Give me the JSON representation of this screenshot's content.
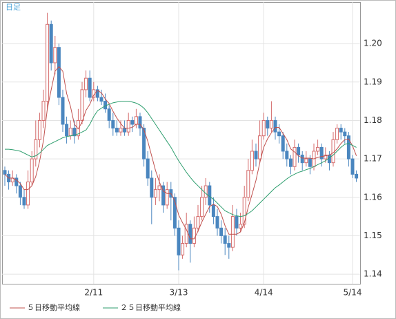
{
  "chart_data": {
    "type": "candlestick",
    "label": "日足",
    "categories": [
      null,
      null,
      null,
      null,
      null,
      null,
      null,
      null,
      null,
      null,
      null,
      null,
      null,
      null,
      null,
      null,
      null,
      null,
      null,
      null,
      null,
      null,
      null,
      "2/11",
      null,
      null,
      null,
      null,
      null,
      null,
      null,
      null,
      null,
      null,
      null,
      null,
      null,
      null,
      null,
      null,
      null,
      null,
      null,
      null,
      null,
      "3/13",
      null,
      null,
      null,
      null,
      null,
      null,
      null,
      null,
      null,
      null,
      null,
      null,
      null,
      null,
      null,
      null,
      null,
      null,
      null,
      null,
      null,
      "4/14",
      null,
      null,
      null,
      null,
      null,
      null,
      null,
      null,
      null,
      null,
      null,
      null,
      null,
      null,
      null,
      null,
      null,
      null,
      null,
      null,
      null,
      null,
      "5/14",
      null
    ],
    "candles": [
      [
        1.167,
        1.168,
        1.163,
        1.166
      ],
      [
        1.166,
        1.167,
        1.162,
        1.164
      ],
      [
        1.164,
        1.167,
        1.163,
        1.165
      ],
      [
        1.165,
        1.166,
        1.161,
        1.163
      ],
      [
        1.163,
        1.164,
        1.158,
        1.16
      ],
      [
        1.16,
        1.162,
        1.157,
        1.158
      ],
      [
        1.158,
        1.167,
        1.157,
        1.164
      ],
      [
        1.164,
        1.172,
        1.163,
        1.17
      ],
      [
        1.17,
        1.18,
        1.168,
        1.175
      ],
      [
        1.175,
        1.182,
        1.173,
        1.18
      ],
      [
        1.18,
        1.188,
        1.178,
        1.185
      ],
      [
        1.185,
        1.208,
        1.183,
        1.205
      ],
      [
        1.205,
        1.206,
        1.193,
        1.195
      ],
      [
        1.195,
        1.202,
        1.192,
        1.199
      ],
      [
        1.199,
        1.2,
        1.184,
        1.186
      ],
      [
        1.186,
        1.188,
        1.177,
        1.179
      ],
      [
        1.179,
        1.181,
        1.174,
        1.176
      ],
      [
        1.176,
        1.18,
        1.175,
        1.178
      ],
      [
        1.178,
        1.18,
        1.174,
        1.176
      ],
      [
        1.176,
        1.183,
        1.175,
        1.18
      ],
      [
        1.18,
        1.19,
        1.179,
        1.188
      ],
      [
        1.188,
        1.193,
        1.186,
        1.191
      ],
      [
        1.191,
        1.193,
        1.185,
        1.186
      ],
      [
        1.186,
        1.19,
        1.185,
        1.188
      ],
      [
        1.188,
        1.189,
        1.185,
        1.186
      ],
      [
        1.186,
        1.188,
        1.184,
        1.185
      ],
      [
        1.185,
        1.187,
        1.182,
        1.183
      ],
      [
        1.183,
        1.184,
        1.178,
        1.18
      ],
      [
        1.18,
        1.182,
        1.176,
        1.178
      ],
      [
        1.178,
        1.18,
        1.176,
        1.177
      ],
      [
        1.177,
        1.18,
        1.176,
        1.178
      ],
      [
        1.178,
        1.18,
        1.176,
        1.177
      ],
      [
        1.177,
        1.182,
        1.176,
        1.18
      ],
      [
        1.18,
        1.181,
        1.177,
        1.179
      ],
      [
        1.179,
        1.183,
        1.178,
        1.181
      ],
      [
        1.181,
        1.182,
        1.176,
        1.178
      ],
      [
        1.178,
        1.179,
        1.168,
        1.17
      ],
      [
        1.17,
        1.172,
        1.163,
        1.165
      ],
      [
        1.165,
        1.167,
        1.153,
        1.16
      ],
      [
        1.16,
        1.165,
        1.158,
        1.162
      ],
      [
        1.162,
        1.166,
        1.159,
        1.163
      ],
      [
        1.163,
        1.164,
        1.156,
        1.158
      ],
      [
        1.158,
        1.164,
        1.157,
        1.162
      ],
      [
        1.162,
        1.164,
        1.154,
        1.16
      ],
      [
        1.16,
        1.161,
        1.15,
        1.152
      ],
      [
        1.152,
        1.154,
        1.141,
        1.145
      ],
      [
        1.145,
        1.15,
        1.144,
        1.148
      ],
      [
        1.148,
        1.156,
        1.147,
        1.153
      ],
      [
        1.153,
        1.154,
        1.143,
        1.148
      ],
      [
        1.148,
        1.155,
        1.147,
        1.152
      ],
      [
        1.152,
        1.158,
        1.151,
        1.155
      ],
      [
        1.155,
        1.163,
        1.154,
        1.16
      ],
      [
        1.16,
        1.165,
        1.158,
        1.163
      ],
      [
        1.163,
        1.164,
        1.156,
        1.158
      ],
      [
        1.158,
        1.16,
        1.153,
        1.155
      ],
      [
        1.155,
        1.157,
        1.15,
        1.152
      ],
      [
        1.152,
        1.154,
        1.148,
        1.15
      ],
      [
        1.15,
        1.152,
        1.145,
        1.148
      ],
      [
        1.148,
        1.15,
        1.144,
        1.147
      ],
      [
        1.147,
        1.158,
        1.146,
        1.155
      ],
      [
        1.155,
        1.157,
        1.15,
        1.152
      ],
      [
        1.152,
        1.156,
        1.151,
        1.153
      ],
      [
        1.153,
        1.163,
        1.152,
        1.16
      ],
      [
        1.16,
        1.17,
        1.159,
        1.167
      ],
      [
        1.167,
        1.175,
        1.166,
        1.172
      ],
      [
        1.172,
        1.174,
        1.168,
        1.17
      ],
      [
        1.17,
        1.18,
        1.169,
        1.176
      ],
      [
        1.176,
        1.182,
        1.175,
        1.18
      ],
      [
        1.18,
        1.181,
        1.176,
        1.178
      ],
      [
        1.178,
        1.185,
        1.177,
        1.18
      ],
      [
        1.18,
        1.181,
        1.175,
        1.177
      ],
      [
        1.177,
        1.179,
        1.174,
        1.176
      ],
      [
        1.176,
        1.177,
        1.17,
        1.172
      ],
      [
        1.172,
        1.174,
        1.168,
        1.17
      ],
      [
        1.17,
        1.171,
        1.166,
        1.168
      ],
      [
        1.168,
        1.175,
        1.167,
        1.173
      ],
      [
        1.173,
        1.174,
        1.169,
        1.171
      ],
      [
        1.171,
        1.172,
        1.167,
        1.169
      ],
      [
        1.169,
        1.172,
        1.168,
        1.17
      ],
      [
        1.17,
        1.171,
        1.166,
        1.168
      ],
      [
        1.168,
        1.174,
        1.167,
        1.172
      ],
      [
        1.172,
        1.175,
        1.171,
        1.173
      ],
      [
        1.173,
        1.174,
        1.168,
        1.17
      ],
      [
        1.17,
        1.173,
        1.169,
        1.171
      ],
      [
        1.171,
        1.172,
        1.167,
        1.169
      ],
      [
        1.169,
        1.177,
        1.168,
        1.175
      ],
      [
        1.175,
        1.179,
        1.174,
        1.178
      ],
      [
        1.178,
        1.179,
        1.175,
        1.177
      ],
      [
        1.177,
        1.178,
        1.174,
        1.176
      ],
      [
        1.176,
        1.177,
        1.168,
        1.17
      ],
      [
        1.17,
        1.171,
        1.165,
        1.166
      ],
      [
        1.166,
        1.167,
        1.164,
        1.165
      ]
    ],
    "up_color": "#d46a6a",
    "down_color": "#4a86bf",
    "series": [
      {
        "name": "５日移動平均線",
        "color": "#c0504d",
        "values": [
          1.166,
          1.165,
          1.165,
          1.1645,
          1.1636,
          1.162,
          1.162,
          1.163,
          1.1654,
          1.1694,
          1.1748,
          1.183,
          1.188,
          1.1928,
          1.194,
          1.1928,
          1.187,
          1.1836,
          1.179,
          1.1778,
          1.1796,
          1.1826,
          1.1842,
          1.1866,
          1.1878,
          1.1872,
          1.1856,
          1.1844,
          1.1824,
          1.1806,
          1.1792,
          1.178,
          1.178,
          1.1782,
          1.179,
          1.179,
          1.1776,
          1.1746,
          1.1708,
          1.167,
          1.164,
          1.1616,
          1.161,
          1.161,
          1.159,
          1.1554,
          1.1534,
          1.1516,
          1.1492,
          1.1492,
          1.1512,
          1.1536,
          1.1556,
          1.1576,
          1.1582,
          1.1576,
          1.1556,
          1.1526,
          1.1504,
          1.1504,
          1.1504,
          1.151,
          1.1534,
          1.1574,
          1.1608,
          1.1644,
          1.169,
          1.173,
          1.1752,
          1.1768,
          1.1782,
          1.1782,
          1.1766,
          1.175,
          1.1726,
          1.1718,
          1.1708,
          1.1702,
          1.1702,
          1.1702,
          1.17,
          1.1704,
          1.1706,
          1.1708,
          1.171,
          1.1716,
          1.1726,
          1.174,
          1.175,
          1.1752,
          1.1734,
          1.1708
        ]
      },
      {
        "name": "２５日移動平均線",
        "color": "#2e9e6e",
        "values": [
          1.1725,
          1.1725,
          1.1724,
          1.1722,
          1.172,
          1.1715,
          1.171,
          1.1705,
          1.1708,
          1.1715,
          1.1725,
          1.1735,
          1.174,
          1.1745,
          1.175,
          1.1755,
          1.1758,
          1.176,
          1.1762,
          1.1765,
          1.177,
          1.1775,
          1.179,
          1.181,
          1.1825,
          1.1832,
          1.1838,
          1.1842,
          1.1846,
          1.1848,
          1.185,
          1.185,
          1.185,
          1.1848,
          1.1845,
          1.184,
          1.1832,
          1.182,
          1.1805,
          1.179,
          1.1775,
          1.176,
          1.1745,
          1.173,
          1.1712,
          1.1695,
          1.168,
          1.1665,
          1.1652,
          1.164,
          1.163,
          1.162,
          1.161,
          1.1602,
          1.1595,
          1.1585,
          1.1575,
          1.1565,
          1.156,
          1.1555,
          1.1552,
          1.155,
          1.1552,
          1.1558,
          1.1565,
          1.1575,
          1.1585,
          1.1595,
          1.1605,
          1.1615,
          1.1625,
          1.1632,
          1.164,
          1.1648,
          1.1655,
          1.166,
          1.1665,
          1.1668,
          1.1672,
          1.1675,
          1.168,
          1.1685,
          1.169,
          1.1695,
          1.1703,
          1.171,
          1.172,
          1.173,
          1.1738,
          1.174,
          1.1735,
          1.173
        ]
      }
    ],
    "ylim": [
      1.1375,
      1.2108
    ],
    "yticks": [
      1.14,
      1.15,
      1.16,
      1.17,
      1.18,
      1.19,
      {
        "value": 1.2,
        "label": "1.20"
      }
    ],
    "grid": true
  }
}
